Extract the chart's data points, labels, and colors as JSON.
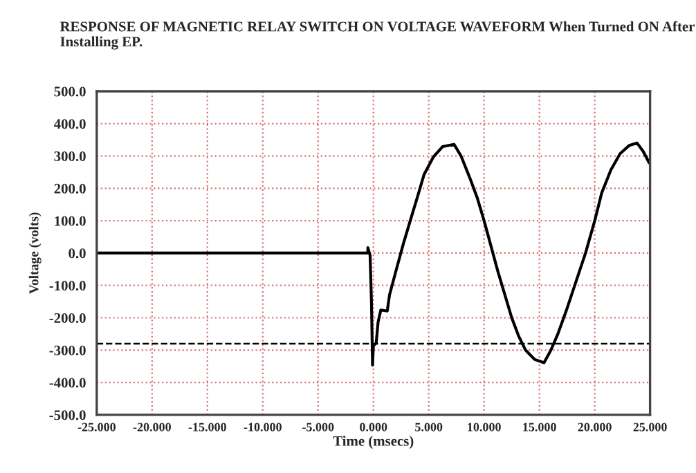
{
  "chart_data": {
    "type": "line",
    "title": "RESPONSE OF MAGNETIC RELAY SWITCH ON VOLTAGE WAVEFORM When Turned ON After Installing EP.",
    "xlabel": "Time (msecs)",
    "ylabel": "Voltage (volts)",
    "xlim": [
      -25,
      25
    ],
    "xticks": [
      {
        "value": -25,
        "label": "-25.000"
      },
      {
        "value": -20,
        "label": "-20.000"
      },
      {
        "value": -15,
        "label": "-15.000"
      },
      {
        "value": -10,
        "label": "-10.000"
      },
      {
        "value": -5,
        "label": "-5.000"
      },
      {
        "value": 0,
        "label": "0.000"
      },
      {
        "value": 5,
        "label": "5.000"
      },
      {
        "value": 10,
        "label": "10.000"
      },
      {
        "value": 15,
        "label": "15.000"
      },
      {
        "value": 20,
        "label": "20.000"
      },
      {
        "value": 25,
        "label": "25.000"
      }
    ],
    "ylim": [
      -500,
      500
    ],
    "yticks": [
      {
        "value": -500,
        "label": "-500.0"
      },
      {
        "value": -400,
        "label": "-400.0"
      },
      {
        "value": -300,
        "label": "-300.0"
      },
      {
        "value": -200,
        "label": "-200.0"
      },
      {
        "value": -100,
        "label": "-100.0"
      },
      {
        "value": 0,
        "label": "0.0"
      },
      {
        "value": 100,
        "label": "100.0"
      },
      {
        "value": 200,
        "label": "200.0"
      },
      {
        "value": 300,
        "label": "300.0"
      },
      {
        "value": 400,
        "label": "400.0"
      },
      {
        "value": 500,
        "label": "500.0"
      }
    ],
    "grid": true,
    "legend": false,
    "marker": "none",
    "line_style": "solid",
    "ref_lines": [
      {
        "axis": "y",
        "value": -280,
        "color": "#000000",
        "line_style": "dashed"
      }
    ],
    "series": [
      {
        "color": "#000000",
        "x": [
          -25,
          -0.5,
          -0.5,
          -0.3,
          -0.17,
          -0.08,
          0,
          0.25,
          0.42,
          0.67,
          1.25,
          1.46,
          2.08,
          2.71,
          3.33,
          3.96,
          4.58,
          5.42,
          6.25,
          7.29,
          7.92,
          8.75,
          9.38,
          10.0,
          10.63,
          11.25,
          11.88,
          12.5,
          13.13,
          13.75,
          14.58,
          15.42,
          16.04,
          16.67,
          17.5,
          18.33,
          19.17,
          20.0,
          20.63,
          21.46,
          22.29,
          23.13,
          23.83,
          24.38,
          24.92
        ],
        "values": [
          0,
          0,
          17,
          -7,
          -157,
          -346,
          -286,
          -279,
          -214,
          -176,
          -179,
          -129,
          -50,
          29,
          100,
          171,
          243,
          297,
          329,
          336,
          300,
          229,
          171,
          100,
          21,
          -57,
          -129,
          -200,
          -257,
          -300,
          -329,
          -339,
          -300,
          -250,
          -171,
          -86,
          0,
          100,
          186,
          257,
          307,
          333,
          340,
          314,
          279
        ]
      }
    ]
  }
}
